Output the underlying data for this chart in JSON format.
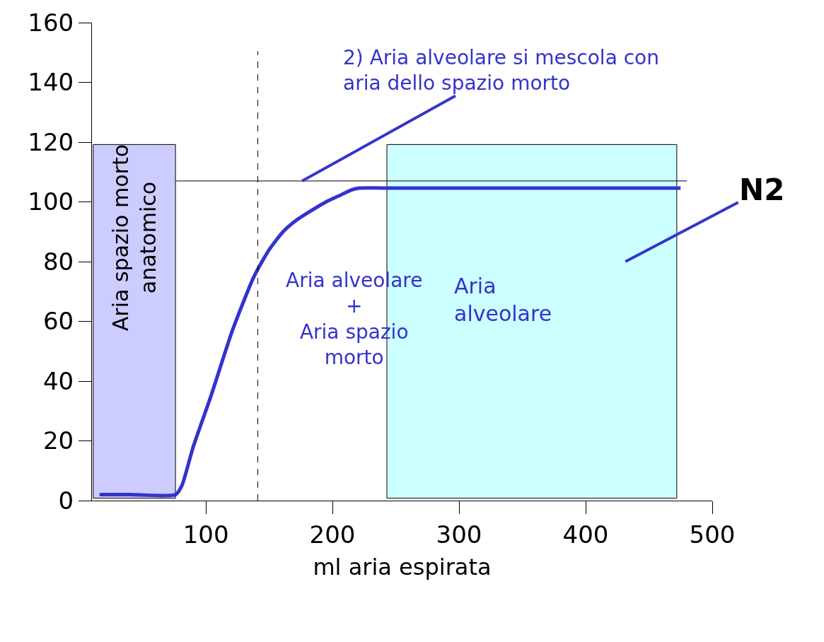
{
  "chart_data": {
    "type": "line",
    "xlabel": "ml aria espirata",
    "x": [
      16,
      40,
      76,
      81,
      90,
      104,
      121,
      138,
      150,
      161,
      172,
      183,
      195,
      205,
      215,
      221,
      250,
      300,
      350,
      400,
      475
    ],
    "series": [
      {
        "color": "#3333cc",
        "values": [
          2,
          2,
          2,
          5,
          18,
          35,
          57,
          75,
          84,
          90,
          94,
          97,
          100,
          102,
          104,
          104.6,
          104.6,
          104.6,
          104.6,
          104.6,
          104.6
        ]
      }
    ],
    "xlim": [
      10,
      500
    ],
    "ylim": [
      0,
      160
    ],
    "xticks": [
      100,
      200,
      300,
      400,
      500
    ],
    "yticks": [
      0,
      20,
      40,
      60,
      80,
      100,
      120,
      140,
      160
    ],
    "grid": false,
    "marker": "none",
    "line_style": "solid",
    "ref_lines": [
      {
        "axis": "x",
        "value": 141,
        "line_style": "dashed",
        "color": "#000000"
      },
      {
        "axis": "y",
        "value": 107,
        "line_style": "solid",
        "color": "#000000"
      }
    ],
    "bands": [
      {
        "axis": "x",
        "from": 11,
        "to": 76,
        "label": "Aria spazio morto\nanatomico",
        "color": "#ccccff"
      },
      {
        "axis": "x",
        "from": 243,
        "to": 472,
        "label": "Aria\nalveolare",
        "color": "#ccffff"
      }
    ],
    "annotations": [
      {
        "text": "2) Aria alveolare si mescola con\naria dello spazio morto",
        "x": 176,
        "y": 107
      },
      "N2",
      "Aria alveolare\n+\nAria spazio\nmorto"
    ]
  }
}
